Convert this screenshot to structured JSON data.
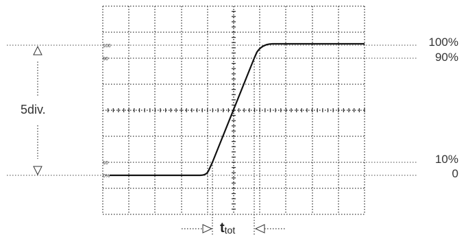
{
  "graticule": {
    "mark_100": "100",
    "mark_90": "90",
    "mark_10": "10",
    "mark_0": "0%"
  },
  "labels": {
    "right_100": "100%",
    "right_90": "90%",
    "right_10": "10%",
    "right_0": "0",
    "amplitude": "5div.",
    "ttot_main": "t",
    "ttot_sub": "tot"
  }
}
